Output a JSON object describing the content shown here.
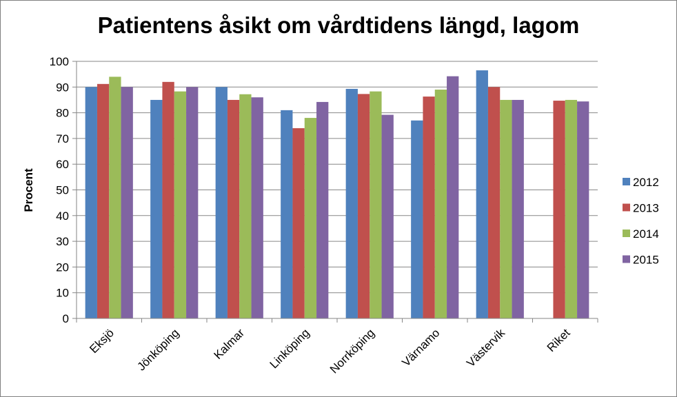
{
  "chart_data": {
    "type": "bar",
    "title": "Patientens åsikt om vårdtidens längd, lagom",
    "xlabel": "",
    "ylabel": "Procent",
    "ylim": [
      0,
      100
    ],
    "yticks": [
      0,
      10,
      20,
      30,
      40,
      50,
      60,
      70,
      80,
      90,
      100
    ],
    "grid": true,
    "legend_position": "right",
    "categories": [
      "Eksjö",
      "Jönköping",
      "Kalmar",
      "Linköping",
      "Norrköping",
      "Värnamo",
      "Västervik",
      "Riket"
    ],
    "series": [
      {
        "name": "2012",
        "color": "#4f81bd",
        "values": [
          90,
          85,
          90,
          81,
          89.3,
          77,
          96.5,
          null
        ]
      },
      {
        "name": "2013",
        "color": "#c0504d",
        "values": [
          91.2,
          92,
          85,
          74,
          87.3,
          86.3,
          90,
          84.7
        ]
      },
      {
        "name": "2014",
        "color": "#9bbb59",
        "values": [
          94,
          88.3,
          87.2,
          78,
          88.3,
          89,
          85,
          85
        ]
      },
      {
        "name": "2015",
        "color": "#8064a2",
        "values": [
          90,
          90,
          86,
          84.2,
          79.2,
          94.2,
          85,
          84.4
        ]
      }
    ]
  }
}
